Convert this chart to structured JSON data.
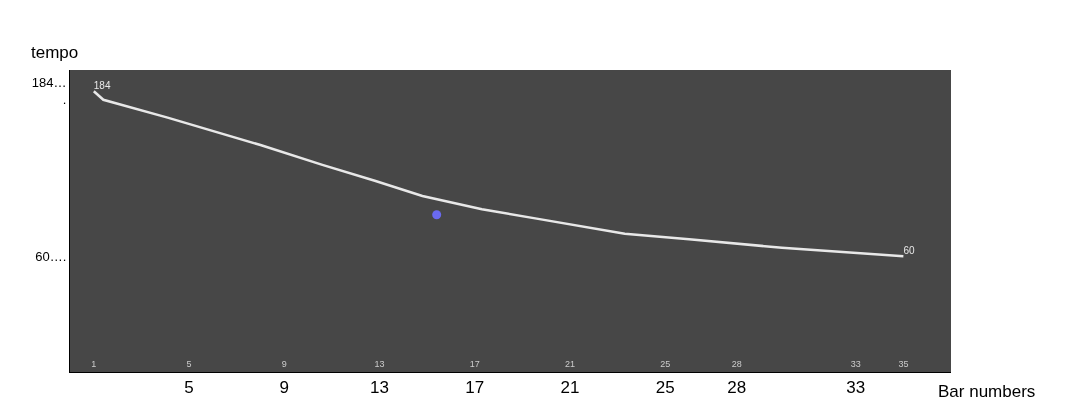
{
  "chart_data": {
    "type": "line",
    "xlabel": "Bar numbers",
    "ylabel": "tempo",
    "x": [
      1,
      1.4,
      4.1,
      8.0,
      10.6,
      12.8,
      14.8,
      17.3,
      19.6,
      23.3,
      26.0,
      29.9,
      35
    ],
    "series": [
      {
        "color": "#e8e8e8",
        "values": [
          184,
          177.6,
          164.2,
          143.6,
          128.7,
          116.7,
          105.3,
          95.4,
          88.3,
          77.0,
          72.7,
          66.4,
          60
        ],
        "value_labels": [
          "184",
          null,
          null,
          null,
          null,
          null,
          null,
          null,
          null,
          null,
          null,
          null,
          "60"
        ]
      },
      {
        "type": "scatter",
        "marker": "circle",
        "color": "#6a6af0",
        "x": [
          15.4
        ],
        "values": [
          91.2
        ]
      }
    ],
    "xlim": [
      0,
      37
    ],
    "xticks": [
      5,
      9,
      13,
      17,
      21,
      25,
      28,
      33
    ],
    "x2lim": [
      0,
      37
    ],
    "x2ticks": [
      1,
      5,
      9,
      13,
      17,
      21,
      25,
      28,
      33,
      35
    ],
    "ylim": [
      -27,
      200
    ],
    "yticks": [
      {
        "value": 184,
        "label": "184…\n."
      },
      {
        "value": 60,
        "label": "60…."
      }
    ],
    "grid": false,
    "marker": "none",
    "line_style": "solid"
  }
}
